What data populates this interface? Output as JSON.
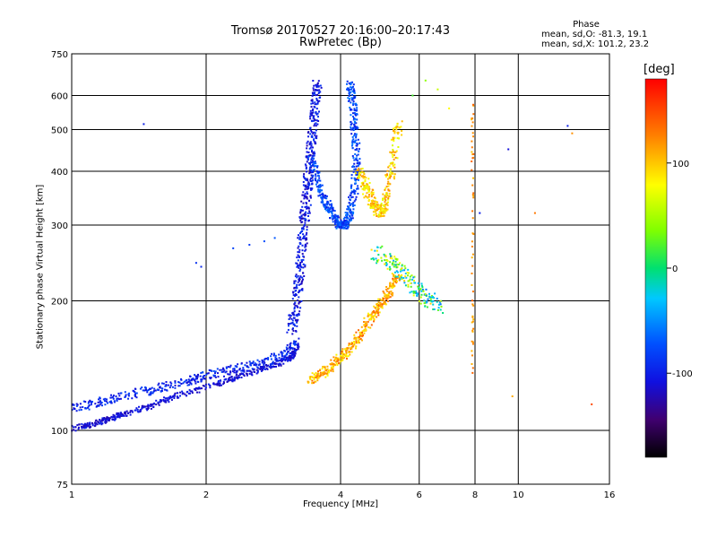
{
  "chart_data": {
    "type": "scatter",
    "title": "Tromsø 20170527 20:16:00–20:17:43",
    "subtitle": "RwPretec (Bp)",
    "xlabel": "Frequency [MHz]",
    "ylabel": "Stationary phase Virtual Height [km]",
    "x_scale": "log",
    "y_scale": "log",
    "xlim": [
      1,
      16
    ],
    "ylim": [
      75,
      750
    ],
    "x_ticks": [
      "1",
      "2",
      "4",
      "6",
      "8",
      "10",
      "16"
    ],
    "y_ticks": [
      "75",
      "100",
      "200",
      "300",
      "400",
      "500",
      "600",
      "750"
    ],
    "grid": true,
    "phase_stats": {
      "heading": "Phase",
      "o_line": "mean, sd,O: -81.3, 19.1",
      "x_line": "mean, sd,X: 101.2, 23.2"
    },
    "colorbar": {
      "label": "[deg]",
      "ticks": [
        "100",
        "0",
        "-100"
      ],
      "tick_values": [
        100,
        0,
        -100
      ],
      "range": [
        -180,
        180
      ]
    },
    "o_trace_low": {
      "freq": [
        1.0,
        1.1,
        1.2,
        1.3,
        1.5,
        1.7,
        2.0,
        2.3,
        2.6,
        2.9,
        3.1,
        3.2
      ],
      "height": [
        101,
        103,
        106,
        109,
        114,
        120,
        126,
        132,
        138,
        143,
        148,
        155
      ],
      "phase": -110
    },
    "o_trace_upper": {
      "freq": [
        1.0,
        1.15,
        1.3,
        1.5,
        1.7,
        1.9,
        2.1,
        2.4,
        2.7,
        3.0,
        3.2
      ],
      "height": [
        113,
        116,
        120,
        124,
        128,
        132,
        136,
        140,
        145,
        150,
        160
      ],
      "phase": -95
    },
    "o_vertical": {
      "freq": [
        3.1,
        3.2,
        3.25,
        3.3,
        3.35,
        3.4,
        3.45,
        3.5,
        3.55
      ],
      "height": [
        170,
        200,
        240,
        290,
        340,
        400,
        470,
        560,
        640
      ],
      "phase": -105
    },
    "o_cusp": {
      "freq": [
        3.45,
        3.55,
        3.7,
        3.85,
        4.0,
        4.1,
        4.2,
        4.3,
        4.35,
        4.3,
        4.25,
        4.2
      ],
      "height": [
        430,
        380,
        340,
        315,
        300,
        300,
        320,
        360,
        420,
        500,
        580,
        640
      ],
      "phase": -80
    },
    "x_trace": {
      "freq": [
        3.4,
        3.6,
        3.8,
        4.0,
        4.2,
        4.4,
        4.6,
        4.8,
        5.0,
        5.2,
        5.4
      ],
      "height": [
        130,
        135,
        140,
        147,
        155,
        165,
        178,
        190,
        200,
        215,
        230
      ],
      "phase": 110
    },
    "x_upper": {
      "freq": [
        4.4,
        4.5,
        4.6,
        4.7,
        4.8,
        4.9,
        5.0,
        5.1,
        5.2,
        5.3,
        5.4
      ],
      "height": [
        400,
        380,
        360,
        340,
        330,
        320,
        330,
        360,
        400,
        460,
        520
      ],
      "phase": 95
    },
    "f2_scatter": {
      "freq": [
        4.8,
        5.0,
        5.2,
        5.4,
        5.6,
        5.8,
        6.0,
        6.2,
        6.4,
        6.6
      ],
      "height": [
        260,
        250,
        245,
        240,
        230,
        220,
        210,
        205,
        200,
        195
      ],
      "phase": 20
    },
    "x_column_8mhz": {
      "freq": [
        7.9,
        7.9,
        7.9,
        7.9,
        7.9,
        7.9,
        7.9,
        7.9
      ],
      "height": [
        140,
        170,
        200,
        260,
        350,
        420,
        500,
        600
      ],
      "phase": 120
    },
    "sporadic": {
      "freq": [
        1.45,
        1.9,
        1.95,
        2.3,
        2.5,
        2.7,
        2.85,
        5.8,
        6.2,
        6.6,
        7.0,
        8.2,
        9.5,
        9.7,
        10.9,
        12.9,
        13.2,
        14.6
      ],
      "height": [
        515,
        245,
        240,
        265,
        270,
        275,
        280,
        600,
        650,
        620,
        560,
        320,
        450,
        120,
        320,
        510,
        490,
        115
      ],
      "phase": [
        -100,
        -90,
        -95,
        -80,
        -85,
        -75,
        -70,
        20,
        40,
        60,
        80,
        -100,
        -110,
        110,
        130,
        -100,
        120,
        150
      ]
    }
  }
}
